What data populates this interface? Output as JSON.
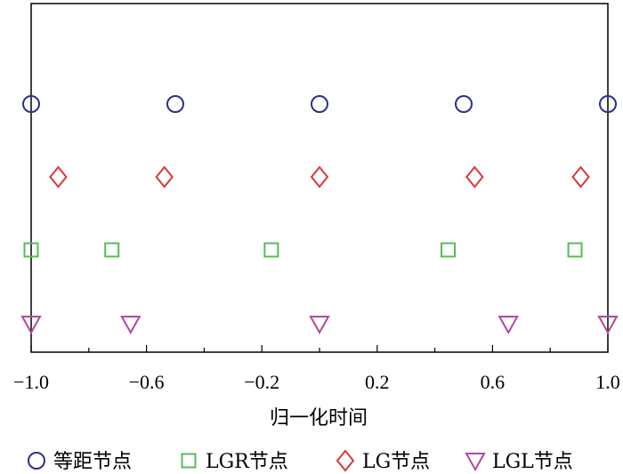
{
  "chart_data": {
    "type": "scatter",
    "title": "",
    "xlabel": "归一化时间",
    "ylabel": "",
    "xlim": [
      -1.0,
      1.0
    ],
    "xticks": [
      -1.0,
      -0.6,
      -0.2,
      0.2,
      0.6,
      1.0
    ],
    "xtick_labels": [
      "−1.0",
      "−0.6",
      "−0.2",
      "0.2",
      "0.6",
      "1.0"
    ],
    "grid": false,
    "legend_position": "bottom",
    "series": [
      {
        "name": "等距节点",
        "marker": "circle",
        "color": "#2e2e8f",
        "x": [
          -1.0,
          -0.5,
          0.0,
          0.5,
          1.0
        ]
      },
      {
        "name": "LG节点",
        "marker": "diamond",
        "color": "#d63a3a",
        "x": [
          -0.906,
          -0.538,
          0.0,
          0.538,
          0.906
        ]
      },
      {
        "name": "LGR节点",
        "marker": "square",
        "color": "#5cb85c",
        "x": [
          -1.0,
          -0.72,
          -0.167,
          0.446,
          0.886
        ]
      },
      {
        "name": "LGL节点",
        "marker": "triangle-down",
        "color": "#b4459f",
        "x": [
          -1.0,
          -0.655,
          0.0,
          0.655,
          1.0
        ]
      }
    ],
    "legend_order": [
      "等距节点",
      "LGR节点",
      "LG节点",
      "LGL节点"
    ]
  }
}
